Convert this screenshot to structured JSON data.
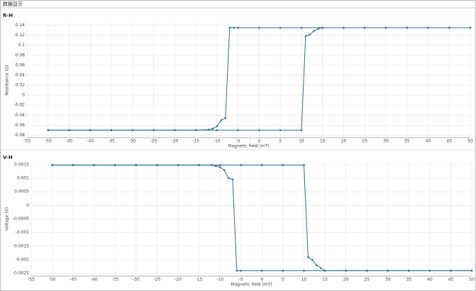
{
  "header": "数据显示",
  "chart_data": [
    {
      "type": "line",
      "title": "R-H",
      "x_label": "Magnetic field (mT)",
      "y_label": "Resistance (Ω)",
      "xlim": [
        -55,
        50
      ],
      "xticks": [
        -55,
        -50,
        -45,
        -40,
        -35,
        -30,
        -25,
        -20,
        -15,
        -10,
        -5,
        0,
        5,
        10,
        15,
        20,
        25,
        30,
        35,
        40,
        45,
        50
      ],
      "ylim": [
        -0.085,
        0.145
      ],
      "yticks": [
        -0.08,
        -0.06,
        -0.04,
        -0.02,
        0,
        0.02,
        0.04,
        0.06,
        0.08,
        0.1,
        0.12,
        0.14
      ],
      "grid": true,
      "series": [
        {
          "color": "#2a6f97",
          "x": [
            50,
            45,
            40,
            35,
            30,
            25,
            20,
            15,
            10,
            5,
            0,
            -5,
            -6,
            -7,
            -8,
            -9,
            -10,
            -11,
            -12,
            -15,
            -20,
            -25,
            -30,
            -35,
            -40,
            -45,
            -50
          ],
          "values": [
            0.135,
            0.135,
            0.135,
            0.135,
            0.135,
            0.135,
            0.135,
            0.135,
            0.135,
            0.135,
            0.135,
            0.135,
            0.135,
            0.135,
            -0.046,
            -0.05,
            -0.062,
            -0.067,
            -0.069,
            -0.07,
            -0.07,
            -0.07,
            -0.07,
            -0.07,
            -0.07,
            -0.07,
            -0.07
          ]
        },
        {
          "color": "#2a6f97",
          "x": [
            -50,
            -45,
            -40,
            -35,
            -30,
            -25,
            -20,
            -15,
            -10,
            -5,
            0,
            5,
            10,
            11,
            12,
            13,
            14,
            15,
            20,
            25,
            30,
            35,
            40,
            45,
            50
          ],
          "values": [
            -0.07,
            -0.07,
            -0.07,
            -0.07,
            -0.07,
            -0.07,
            -0.07,
            -0.07,
            -0.07,
            -0.07,
            -0.07,
            -0.07,
            -0.07,
            0.118,
            0.121,
            0.129,
            0.133,
            0.135,
            0.135,
            0.135,
            0.135,
            0.135,
            0.135,
            0.135,
            0.135
          ]
        }
      ]
    },
    {
      "type": "line",
      "title": "V-H",
      "x_label": "Magnetic field (mT)",
      "y_label": "Voltage (V)",
      "xlim": [
        -55,
        50
      ],
      "xticks": [
        -55,
        -50,
        -45,
        -40,
        -35,
        -30,
        -25,
        -20,
        -15,
        -10,
        -5,
        0,
        5,
        10,
        15,
        20,
        25,
        30,
        35,
        40,
        45,
        50
      ],
      "ylim": [
        -0.0026,
        0.0016
      ],
      "yticks": [
        -0.0025,
        -0.002,
        -0.0015,
        -0.001,
        -0.0005,
        0,
        0.0005,
        0.001,
        0.0015
      ],
      "grid": true,
      "series": [
        {
          "color": "#2a6f97",
          "x": [
            50,
            45,
            40,
            35,
            30,
            25,
            20,
            15,
            10,
            5,
            0,
            -5,
            -6,
            -7,
            -8,
            -9,
            -10,
            -11,
            -12,
            -15,
            -20,
            -25,
            -30,
            -35,
            -40,
            -45,
            -50
          ],
          "values": [
            -0.0024,
            -0.0024,
            -0.0024,
            -0.0024,
            -0.0024,
            -0.0024,
            -0.0024,
            -0.0024,
            -0.0024,
            -0.0024,
            -0.0024,
            -0.0024,
            -0.0024,
            0.00095,
            0.001,
            0.0013,
            0.0014,
            0.00145,
            0.00148,
            0.00148,
            0.00148,
            0.00148,
            0.00148,
            0.00148,
            0.00148,
            0.00148,
            0.00148
          ]
        },
        {
          "color": "#2a6f97",
          "x": [
            -50,
            -45,
            -40,
            -35,
            -30,
            -25,
            -20,
            -15,
            -10,
            -5,
            0,
            5,
            10,
            11,
            12,
            13,
            14,
            15,
            20,
            25,
            30,
            35,
            40,
            45,
            50
          ],
          "values": [
            0.00148,
            0.00148,
            0.00148,
            0.00148,
            0.00148,
            0.00148,
            0.00148,
            0.00148,
            0.00148,
            0.00148,
            0.00148,
            0.00148,
            0.00148,
            -0.0019,
            -0.002,
            -0.0022,
            -0.0023,
            -0.0024,
            -0.0024,
            -0.0024,
            -0.0024,
            -0.0024,
            -0.0024,
            -0.0024,
            -0.0024
          ]
        }
      ]
    }
  ]
}
